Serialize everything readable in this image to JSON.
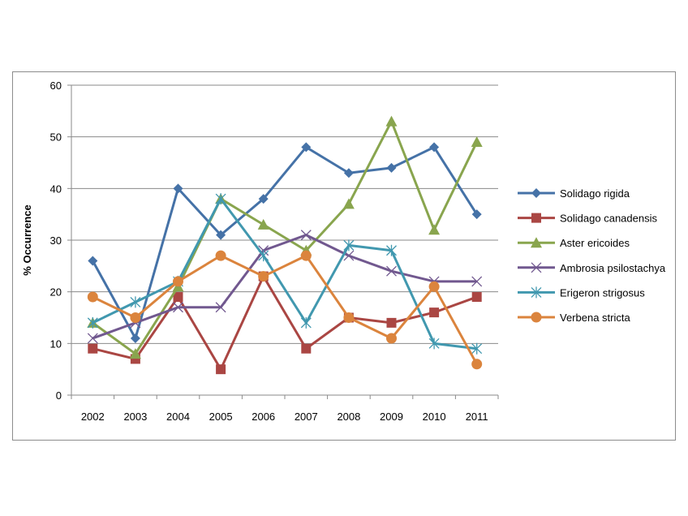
{
  "chart_data": {
    "type": "line",
    "title": "",
    "xlabel": "",
    "ylabel": "% Occurrence",
    "ylim": [
      0,
      60
    ],
    "yticks": [
      0,
      10,
      20,
      30,
      40,
      50,
      60
    ],
    "grid": true,
    "legend_position": "right",
    "categories": [
      "2002",
      "2003",
      "2004",
      "2005",
      "2006",
      "2007",
      "2008",
      "2009",
      "2010",
      "2011"
    ],
    "series": [
      {
        "name": "Solidago rigida",
        "color": "#4572a7",
        "marker": "diamond",
        "values": [
          26,
          11,
          40,
          31,
          38,
          48,
          43,
          44,
          48,
          35
        ]
      },
      {
        "name": "Solidago canadensis",
        "color": "#aa4643",
        "marker": "square",
        "values": [
          9,
          7,
          19,
          5,
          23,
          9,
          15,
          14,
          16,
          19
        ]
      },
      {
        "name": "Aster ericoides",
        "color": "#89a54e",
        "marker": "triangle",
        "values": [
          14,
          8,
          21,
          38,
          33,
          28,
          37,
          53,
          32,
          49
        ]
      },
      {
        "name": "Ambrosia psilostachya",
        "color": "#71588f",
        "marker": "x",
        "values": [
          11,
          14,
          17,
          17,
          28,
          31,
          27,
          24,
          22,
          22
        ]
      },
      {
        "name": "Erigeron strigosus",
        "color": "#4198af",
        "marker": "star",
        "values": [
          14,
          18,
          22,
          38,
          27,
          14,
          29,
          28,
          10,
          9
        ]
      },
      {
        "name": "Verbena stricta",
        "color": "#db843d",
        "marker": "circle",
        "values": [
          19,
          15,
          22,
          27,
          23,
          27,
          15,
          11,
          21,
          6
        ]
      }
    ]
  }
}
